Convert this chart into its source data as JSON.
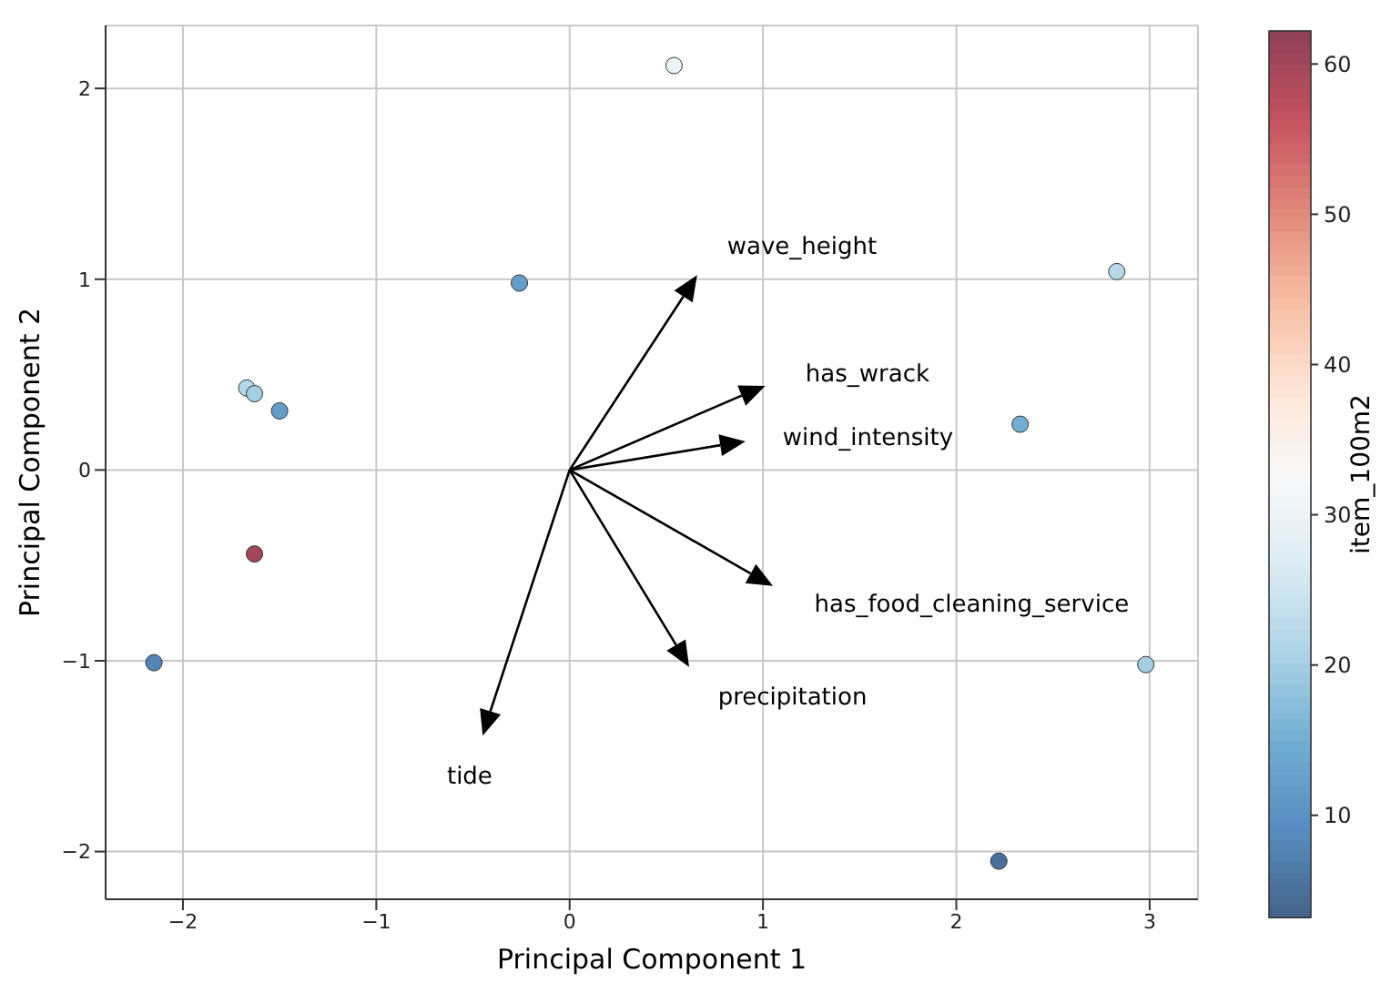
{
  "chart_data": {
    "type": "scatter",
    "xlabel": "Principal Component 1",
    "ylabel": "Principal Component 2",
    "clabel": "item_100m2",
    "xlim": [
      -2.4,
      3.25
    ],
    "ylim": [
      -2.25,
      2.33
    ],
    "xticks": [
      -2,
      -1,
      0,
      1,
      2,
      3
    ],
    "yticks": [
      -2,
      -1,
      0,
      1,
      2
    ],
    "clim": [
      3.2,
      62.2
    ],
    "cticks": [
      10,
      20,
      30,
      40,
      50,
      60
    ],
    "grid": true,
    "marker": "circle",
    "series": [
      {
        "x": [
          0.54,
          -0.26,
          -1.67,
          -1.63,
          -1.5,
          -1.63,
          -2.15,
          2.83,
          2.33,
          2.98,
          2.22
        ],
        "values": [
          2.12,
          0.98,
          0.43,
          0.4,
          0.31,
          -0.44,
          -1.01,
          1.04,
          0.24,
          -1.02,
          -2.05
        ],
        "cvalues": [
          30,
          12,
          22,
          20,
          12,
          60,
          8,
          22,
          15,
          20,
          5
        ],
        "colors": [
          "#ecf3f7",
          "#659dc9",
          "#b6d8e9",
          "#a4cee3",
          "#659dc9",
          "#a2465a",
          "#5585b6",
          "#b6d8e9",
          "#72aed2",
          "#a4cee3",
          "#4a709a"
        ]
      },
      {
        "marker": "triangle",
        "color": "#000000",
        "x": [
          0.6,
          0.94,
          0.84,
          0.98,
          0.56,
          -0.41
        ],
        "values": [
          0.95,
          0.39,
          0.13,
          -0.55,
          -0.96,
          -1.32
        ]
      }
    ],
    "annotations": [
      "wave_height",
      "has_wrack",
      "wind_intensity",
      "has_food_cleaning_service",
      "precipitation",
      "tide"
    ]
  }
}
